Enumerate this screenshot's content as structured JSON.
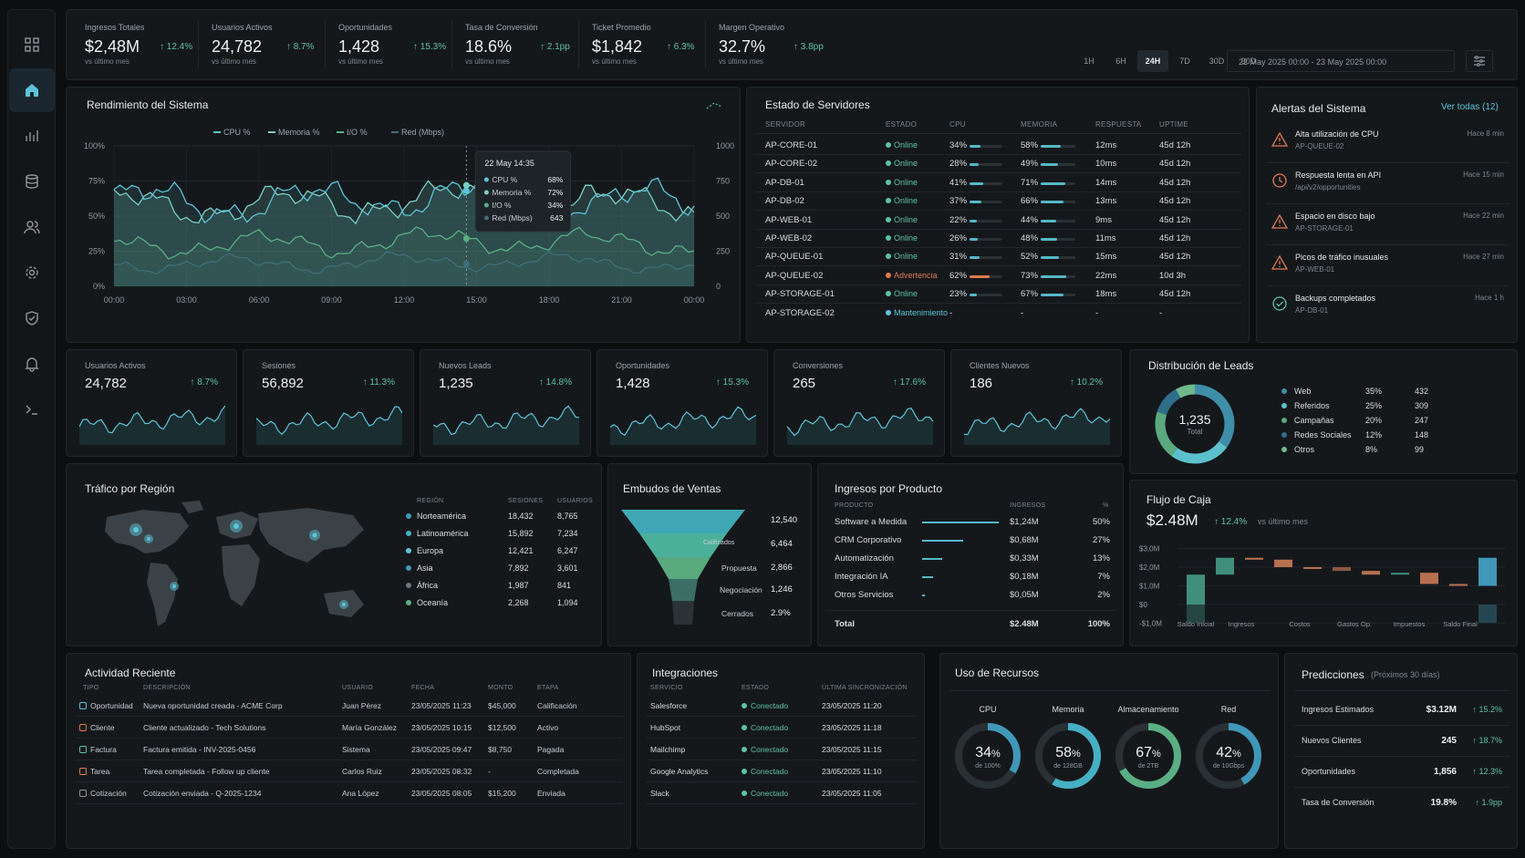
{
  "sidebar": {
    "items": [
      "grid",
      "home",
      "analytics",
      "database",
      "users",
      "settings",
      "shield",
      "bell",
      "terminal"
    ]
  },
  "kpis": [
    {
      "label": "Ingresos Totales",
      "value": "$2,48M",
      "delta": "↑ 12.4%",
      "sub": "vs último mes"
    },
    {
      "label": "Usuarios Activos",
      "value": "24,782",
      "delta": "↑ 8.7%",
      "sub": "vs último mes"
    },
    {
      "label": "Oportunidades",
      "value": "1,428",
      "delta": "↑ 15.3%",
      "sub": "vs último mes"
    },
    {
      "label": "Tasa de Conversión",
      "value": "18.6%",
      "delta": "↑ 2.1pp",
      "sub": "vs último mes"
    },
    {
      "label": "Ticket Promedio",
      "value": "$1,842",
      "delta": "↑ 6.3%",
      "sub": "vs último mes"
    },
    {
      "label": "Margen Operativo",
      "value": "32.7%",
      "delta": "↑ 3.8pp",
      "sub": "vs último mes"
    }
  ],
  "timeframes": [
    "1H",
    "6H",
    "24H",
    "7D",
    "30D",
    "90D"
  ],
  "selected_timeframe": "24H",
  "date_range": "22 May 2025 00:00 - 23 May 2025 00:00",
  "performance": {
    "title": "Rendimiento del Sistema",
    "legend": [
      "CPU %",
      "Memoria %",
      "I/O %",
      "Red (Mbps)"
    ],
    "y_left": [
      "100%",
      "75%",
      "50%",
      "25%",
      "0%"
    ],
    "y_right": [
      "1000",
      "750",
      "500",
      "250",
      "0"
    ],
    "x_ticks": [
      "00:00",
      "03:00",
      "06:00",
      "09:00",
      "12:00",
      "15:00",
      "18:00",
      "21:00",
      "00:00"
    ],
    "tooltip": {
      "time": "22 May 14:35",
      "rows": [
        [
          "CPU %",
          "68%"
        ],
        [
          "Memoria %",
          "72%"
        ],
        [
          "I/O %",
          "34%"
        ],
        [
          "Red (Mbps)",
          "643"
        ]
      ]
    }
  },
  "servers": {
    "title": "Estado de Servidores",
    "headers": [
      "SERVIDOR",
      "ESTADO",
      "CPU",
      "MEMORIA",
      "RESPUESTA",
      "UPTIME"
    ],
    "rows": [
      [
        "AP-CORE-01",
        "Online",
        "34%",
        "58%",
        "12ms",
        "45d 12h"
      ],
      [
        "AP-CORE-02",
        "Online",
        "28%",
        "49%",
        "10ms",
        "45d 12h"
      ],
      [
        "AP-DB-01",
        "Online",
        "41%",
        "71%",
        "14ms",
        "45d 12h"
      ],
      [
        "AP-DB-02",
        "Online",
        "37%",
        "66%",
        "13ms",
        "45d 12h"
      ],
      [
        "AP-WEB-01",
        "Online",
        "22%",
        "44%",
        "9ms",
        "45d 12h"
      ],
      [
        "AP-WEB-02",
        "Online",
        "26%",
        "48%",
        "11ms",
        "45d 12h"
      ],
      [
        "AP-QUEUE-01",
        "Online",
        "31%",
        "52%",
        "15ms",
        "45d 12h"
      ],
      [
        "AP-QUEUE-02",
        "Advertencia",
        "62%",
        "73%",
        "22ms",
        "10d 3h"
      ],
      [
        "AP-STORAGE-01",
        "Online",
        "23%",
        "67%",
        "18ms",
        "45d 12h"
      ],
      [
        "AP-STORAGE-02",
        "Mantenimiento",
        "-",
        "-",
        "-",
        "-"
      ]
    ]
  },
  "alerts": {
    "title": "Alertas del Sistema",
    "link": "Ver todas (12)",
    "items": [
      {
        "icon": "warning-icon",
        "title": "Alta utilización de CPU",
        "sub": "AP-QUEUE-02",
        "time": "Hace 8 min"
      },
      {
        "icon": "clock-icon",
        "title": "Respuesta lenta en API",
        "sub": "/api/v2/opportunities",
        "time": "Hace 15 min"
      },
      {
        "icon": "warning-icon",
        "title": "Espacio en disco bajo",
        "sub": "AP-STORAGE-01",
        "time": "Hace 22 min"
      },
      {
        "icon": "warning-icon",
        "title": "Picos de tráfico inusuales",
        "sub": "AP-WEB-01",
        "time": "Hace 27 min"
      },
      {
        "icon": "check-icon",
        "title": "Backups completados",
        "sub": "AP-DB-01",
        "time": "Hace 1 h"
      }
    ]
  },
  "minis": [
    {
      "label": "Usuarios Activos",
      "value": "24,782",
      "delta": "↑ 8.7%"
    },
    {
      "label": "Sesiones",
      "value": "56,892",
      "delta": "↑ 11.3%"
    },
    {
      "label": "Nuevos Leads",
      "value": "1,235",
      "delta": "↑ 14.8%"
    },
    {
      "label": "Oportunidades",
      "value": "1,428",
      "delta": "↑ 15.3%"
    },
    {
      "label": "Conversiones",
      "value": "265",
      "delta": "↑ 17.6%"
    },
    {
      "label": "Clientes Nuevos",
      "value": "186",
      "delta": "↑ 10.2%"
    }
  ],
  "leads": {
    "title": "Distribución de Leads",
    "total": "1,235",
    "total_label": "Total",
    "rows": [
      [
        "Web",
        "35%",
        "432"
      ],
      [
        "Referidos",
        "25%",
        "309"
      ],
      [
        "Campañas",
        "20%",
        "247"
      ],
      [
        "Redes Sociales",
        "12%",
        "148"
      ],
      [
        "Otros",
        "8%",
        "99"
      ]
    ],
    "colors": [
      "#3f8ea8",
      "#5cc0cc",
      "#5aa97f",
      "#2f6e8a",
      "#6fb98a"
    ]
  },
  "traffic": {
    "title": "Tráfico por Región",
    "headers": [
      "REGIÓN",
      "SESIONES",
      "USUARIOS"
    ],
    "rows": [
      [
        "Norteamérica",
        "18,432",
        "8,765"
      ],
      [
        "Latinoamérica",
        "15,892",
        "7,234"
      ],
      [
        "Europa",
        "12,421",
        "6,247"
      ],
      [
        "Asia",
        "7,892",
        "3,601"
      ],
      [
        "África",
        "1,987",
        "841"
      ],
      [
        "Oceanía",
        "2,268",
        "1,094"
      ]
    ]
  },
  "funnel": {
    "title": "Embudos de Ventas",
    "stages": [
      {
        "label": "",
        "value": "12,540"
      },
      {
        "label": "Calificados",
        "value": "6,464"
      },
      {
        "label": "Propuesta",
        "value": "2,866"
      },
      {
        "label": "Negociación",
        "value": "1,246"
      },
      {
        "label": "Cerrados",
        "value": "2.9%"
      }
    ]
  },
  "product": {
    "title": "Ingresos por Producto",
    "headers": [
      "PRODUCTO",
      "INGRESOS",
      "%"
    ],
    "rows": [
      [
        "Software a Medida",
        "$1,24M",
        "50%"
      ],
      [
        "CRM Corporativo",
        "$0,68M",
        "27%"
      ],
      [
        "Automatización",
        "$0,33M",
        "13%"
      ],
      [
        "Integración IA",
        "$0,18M",
        "7%"
      ],
      [
        "Otros Servicios",
        "$0,05M",
        "2%"
      ]
    ],
    "total": [
      "Total",
      "$2.48M",
      "100%"
    ]
  },
  "cash": {
    "title": "Flujo de Caja",
    "value": "$2.48M",
    "delta": "↑ 12.4%",
    "sub": "vs último mes",
    "y": [
      "$3,0M",
      "$2,0M",
      "$1,0M",
      "$0",
      "-$1,0M"
    ],
    "x": [
      "Saldo Inicial",
      "Ingresos",
      "Costos",
      "Gastos Op.",
      "Impuestos",
      "Saldo Final"
    ]
  },
  "activity": {
    "title": "Actividad Reciente",
    "headers": [
      "TIPO",
      "DESCRIPCIÓN",
      "USUARIO",
      "FECHA",
      "MONTO",
      "ETAPA"
    ],
    "rows": [
      [
        "Oportunidad",
        "Nueva oportunidad creada - ACME Corp",
        "Juan Pérez",
        "23/05/2025 11:23",
        "$45,000",
        "Calificación"
      ],
      [
        "Cliente",
        "Cliente actualizado - Tech Solutions",
        "María González",
        "23/05/2025 10:15",
        "$12,500",
        "Activo"
      ],
      [
        "Factura",
        "Factura emitida - INV-2025-0456",
        "Sistema",
        "23/05/2025 09:47",
        "$8,750",
        "Pagada"
      ],
      [
        "Tarea",
        "Tarea completada - Follow up cliente",
        "Carlos Ruiz",
        "23/05/2025 08:32",
        "-",
        "Completada"
      ],
      [
        "Cotización",
        "Cotización enviada - Q-2025-1234",
        "Ana López",
        "23/05/2025 08:05",
        "$15,200",
        "Enviada"
      ]
    ]
  },
  "integrations": {
    "title": "Integraciones",
    "headers": [
      "SERVICIO",
      "ESTADO",
      "ÚLTIMA SINCRONIZACIÓN"
    ],
    "rows": [
      [
        "Salesforce",
        "Conectado",
        "23/05/2025 11:20"
      ],
      [
        "HubSpot",
        "Conectado",
        "23/05/2025 11:18"
      ],
      [
        "Mailchimp",
        "Conectado",
        "23/05/2025 11:15"
      ],
      [
        "Google Analytics",
        "Conectado",
        "23/05/2025 11:10"
      ],
      [
        "Slack",
        "Conectado",
        "23/05/2025 11:05"
      ]
    ]
  },
  "resources": {
    "title": "Uso de Recursos",
    "items": [
      {
        "label": "CPU",
        "value": "34",
        "unit": "%",
        "sub": "de 100%",
        "pct": 0.34,
        "color": "#3f98b8"
      },
      {
        "label": "Memoria",
        "value": "58",
        "unit": "%",
        "sub": "de 128GB",
        "pct": 0.58,
        "color": "#45b0c4"
      },
      {
        "label": "Almacenamiento",
        "value": "67",
        "unit": "%",
        "sub": "de 2TB",
        "pct": 0.67,
        "color": "#5aae84"
      },
      {
        "label": "Red",
        "value": "42",
        "unit": "%",
        "sub": "de 10Gbps",
        "pct": 0.42,
        "color": "#3f98b8"
      }
    ]
  },
  "predictions": {
    "title": "Predicciones",
    "sub": "(Próximos 30 días)",
    "rows": [
      [
        "Ingresos Estimados",
        "$3.12M",
        "↑ 15.2%"
      ],
      [
        "Nuevos Clientes",
        "245",
        "↑ 18.7%"
      ],
      [
        "Oportunidades",
        "1,856",
        "↑ 12.3%"
      ],
      [
        "Tasa de Conversión",
        "19.8%",
        "↑ 1.9pp"
      ]
    ]
  }
}
